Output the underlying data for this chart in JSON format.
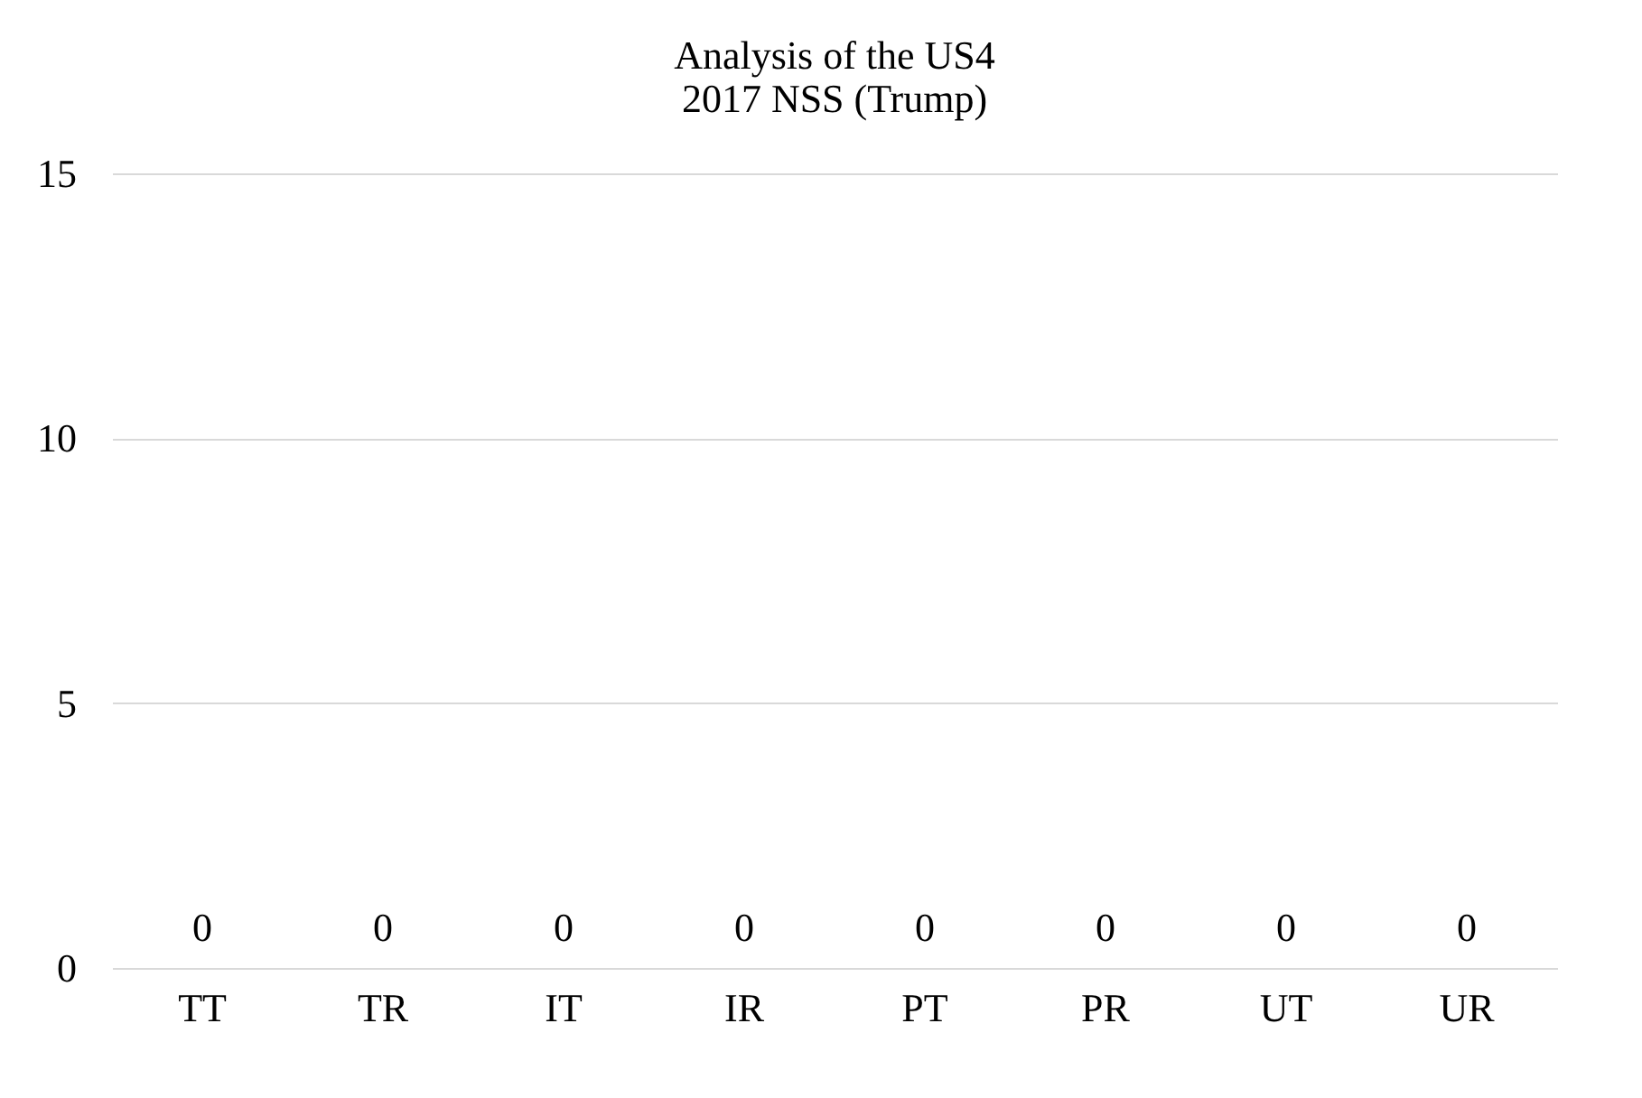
{
  "chart_data": {
    "type": "bar",
    "title": "Analysis of the US4\n2017 NSS (Trump)",
    "categories": [
      "TT",
      "TR",
      "IT",
      "IR",
      "PT",
      "PR",
      "UT",
      "UR"
    ],
    "values": [
      0,
      0,
      0,
      0,
      0,
      0,
      0,
      0
    ],
    "ylim": [
      0,
      15
    ],
    "yticks": [
      0,
      5,
      10,
      15
    ],
    "grid": "y",
    "data_labels": true
  }
}
